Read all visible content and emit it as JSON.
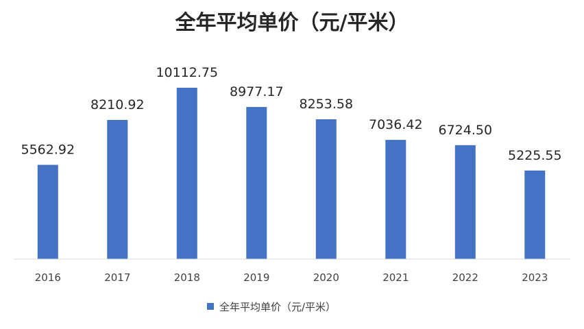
{
  "chart_data": {
    "type": "bar",
    "title": "全年平均单价（元/平米）",
    "xlabel": "",
    "ylabel": "",
    "categories": [
      "2016",
      "2017",
      "2018",
      "2019",
      "2020",
      "2021",
      "2022",
      "2023"
    ],
    "series": [
      {
        "name": "全年平均单价（元/平米）",
        "values": [
          5562.92,
          8210.92,
          10112.75,
          8977.17,
          8253.58,
          7036.42,
          6724.5,
          5225.55
        ],
        "labels": [
          "5562.92",
          "8210.92",
          "10112.75",
          "8977.17",
          "8253.58",
          "7036.42",
          "6724.50",
          "5225.55"
        ],
        "color": "#4472C4"
      }
    ],
    "ylim": [
      0,
      10112.75
    ],
    "grid": false,
    "legend": "bottom",
    "data_labels": true
  }
}
